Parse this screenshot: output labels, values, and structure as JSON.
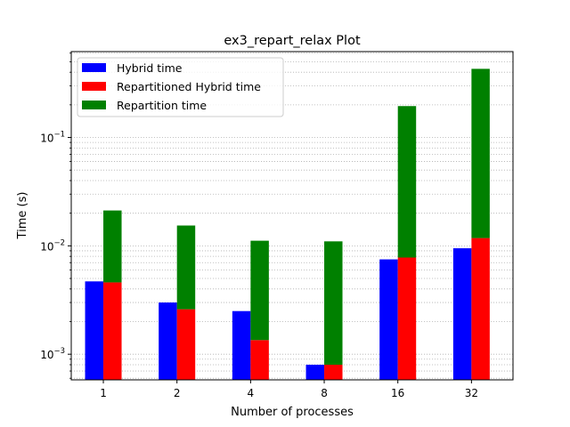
{
  "chart_data": {
    "type": "bar",
    "title": "ex3_repart_relax Plot",
    "xlabel": "Number of processes",
    "ylabel": "Time (s)",
    "yscale": "log",
    "ylim": [
      0.00058,
      0.62
    ],
    "grid": "y-major-and-minor-dotted",
    "legend_position": "top-left",
    "categories": [
      "1",
      "2",
      "4",
      "8",
      "16",
      "32"
    ],
    "ytick_major_labels": [
      "10",
      "10",
      "10"
    ],
    "ytick_major_exponents": [
      "−3",
      "−2",
      "−1"
    ],
    "series": [
      {
        "name": "Hybrid time",
        "color": "#0000ff",
        "values": [
          0.0047,
          0.003,
          0.0025,
          0.0008,
          0.0075,
          0.0095
        ]
      },
      {
        "name": "Repartitioned Hybrid time",
        "color": "#ff0000",
        "values": [
          0.0046,
          0.0026,
          0.00135,
          0.0008,
          0.0078,
          0.0118
        ]
      },
      {
        "name": "Repartition time",
        "color": "#008000",
        "stacked_on": "Repartitioned Hybrid time",
        "values": [
          0.0166,
          0.0128,
          0.0098,
          0.0102,
          0.187,
          0.418
        ]
      }
    ]
  }
}
